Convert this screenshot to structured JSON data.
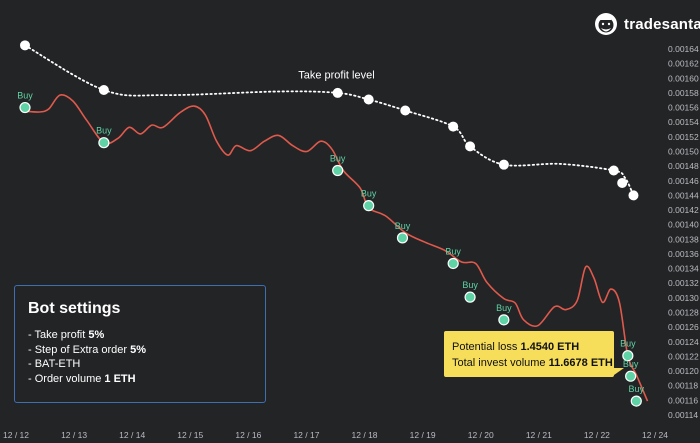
{
  "brand": {
    "name": "tradesanta"
  },
  "colors": {
    "background": "#232426",
    "price_line": "#e0594c",
    "buy_marker": "#5fd3a6",
    "take_profit": "#ffffff",
    "settings_border": "#3d6fb2",
    "loss_box": "#f7de5a"
  },
  "settings_box": {
    "title": "Bot settings",
    "take_profit_label": "- Take profit ",
    "take_profit_value": "5%",
    "extra_order_label": "- Step of Extra order ",
    "extra_order_value": "5%",
    "pair": "- BAT-ETH",
    "order_volume_label": "- Order volume ",
    "order_volume_value": "1 ETH"
  },
  "loss_box": {
    "loss_label": "Potential loss ",
    "loss_value": "1.4540 ETH",
    "invest_label": "Total invest volume ",
    "invest_value": "11.6678 ETH"
  },
  "chart_data": {
    "type": "line",
    "x_ticks": [
      "12 / 12",
      "12 / 13",
      "12 / 14",
      "12 / 15",
      "12 / 16",
      "12 / 17",
      "12 / 18",
      "12 / 19",
      "12 / 20",
      "12 / 21",
      "12 / 22",
      "12 / 24"
    ],
    "y_ticks": [
      "0.00164",
      "0.00162",
      "0.00160",
      "0.00158",
      "0.00156",
      "0.00154",
      "0.00152",
      "0.00150",
      "0.00148",
      "0.00146",
      "0.00144",
      "0.00142",
      "0.00140",
      "0.00138",
      "0.00136",
      "0.00134",
      "0.00132",
      "0.00130",
      "0.00128",
      "0.00126",
      "0.00124",
      "0.00122",
      "0.00120",
      "0.00118",
      "0.00116",
      "0.00114"
    ],
    "ylim": [
      0.00114,
      0.00164
    ],
    "xlim": [
      0,
      11.2
    ],
    "grid": false,
    "series": [
      {
        "kind": "price",
        "points": [
          [
            0,
            0.001555
          ],
          [
            0.25,
            0.001554
          ],
          [
            0.42,
            0.001558
          ],
          [
            0.62,
            0.001577
          ],
          [
            0.85,
            0.001569
          ],
          [
            1.1,
            0.001542
          ],
          [
            1.4,
            0.001512
          ],
          [
            1.65,
            0.001518
          ],
          [
            1.85,
            0.001533
          ],
          [
            2.05,
            0.001524
          ],
          [
            2.25,
            0.001536
          ],
          [
            2.45,
            0.001533
          ],
          [
            2.75,
            0.001553
          ],
          [
            3.0,
            0.001562
          ],
          [
            3.2,
            0.00155
          ],
          [
            3.4,
            0.001514
          ],
          [
            3.6,
            0.001495
          ],
          [
            3.75,
            0.001508
          ],
          [
            4.0,
            0.001501
          ],
          [
            4.25,
            0.001514
          ],
          [
            4.5,
            0.001522
          ],
          [
            4.75,
            0.001508
          ],
          [
            5.0,
            0.0015
          ],
          [
            5.25,
            0.001514
          ],
          [
            5.45,
            0.001503
          ],
          [
            5.65,
            0.001474
          ],
          [
            5.95,
            0.00145
          ],
          [
            6.1,
            0.001423
          ],
          [
            6.4,
            0.001412
          ],
          [
            6.75,
            0.001389
          ],
          [
            7.1,
            0.001376
          ],
          [
            7.45,
            0.001365
          ],
          [
            7.75,
            0.001349
          ],
          [
            8.0,
            0.001347
          ],
          [
            8.2,
            0.001321
          ],
          [
            8.5,
            0.001299
          ],
          [
            8.7,
            0.001293
          ],
          [
            8.85,
            0.00127
          ],
          [
            9.1,
            0.001262
          ],
          [
            9.4,
            0.001288
          ],
          [
            9.6,
            0.001284
          ],
          [
            9.8,
            0.001296
          ],
          [
            9.95,
            0.001342
          ],
          [
            10.1,
            0.001327
          ],
          [
            10.25,
            0.001294
          ],
          [
            10.4,
            0.001312
          ],
          [
            10.55,
            0.001294
          ],
          [
            10.7,
            0.001221
          ],
          [
            10.85,
            0.001195
          ],
          [
            11.05,
            0.001159
          ]
        ]
      },
      {
        "kind": "take_profit",
        "name": "Take profit level",
        "points": [
          [
            0,
            0.001645
          ],
          [
            1.4,
            0.001584
          ],
          [
            2.5,
            0.001577
          ],
          [
            4.5,
            0.001582
          ],
          [
            5.55,
            0.00158
          ],
          [
            6.1,
            0.001571
          ],
          [
            6.75,
            0.001556
          ],
          [
            7.6,
            0.001534
          ],
          [
            7.9,
            0.001507
          ],
          [
            8.5,
            0.001482
          ],
          [
            9.5,
            0.001483
          ],
          [
            10.45,
            0.001474
          ],
          [
            10.65,
            0.001464
          ],
          [
            10.8,
            0.00144
          ]
        ],
        "markers": [
          [
            0,
            0.001645
          ],
          [
            1.4,
            0.001584
          ],
          [
            5.55,
            0.00158
          ],
          [
            6.1,
            0.001571
          ],
          [
            6.75,
            0.001556
          ],
          [
            7.6,
            0.001534
          ],
          [
            7.9,
            0.001507
          ],
          [
            8.5,
            0.001482
          ],
          [
            10.45,
            0.001474
          ],
          [
            10.6,
            0.001457
          ],
          [
            10.8,
            0.00144
          ]
        ]
      }
    ],
    "buys": [
      [
        0.0,
        0.00156
      ],
      [
        1.4,
        0.001512
      ],
      [
        5.55,
        0.001474
      ],
      [
        6.1,
        0.001426
      ],
      [
        6.7,
        0.001382
      ],
      [
        7.6,
        0.001347
      ],
      [
        7.9,
        0.001301
      ],
      [
        8.5,
        0.00127
      ],
      [
        10.7,
        0.001221
      ],
      [
        10.75,
        0.001193
      ],
      [
        10.85,
        0.001159
      ]
    ],
    "buy_label": "Buy",
    "annotation": "Take profit level"
  }
}
